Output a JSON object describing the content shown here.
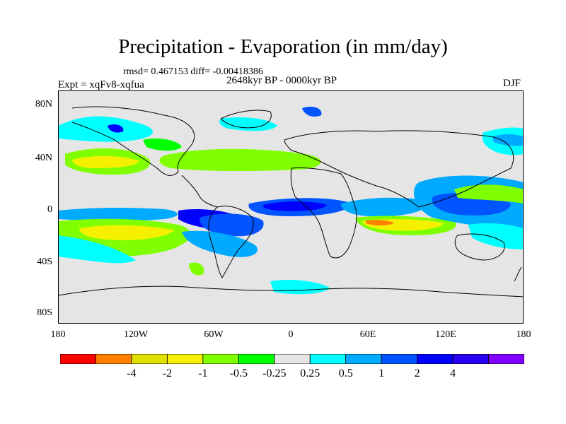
{
  "title": "Precipitation - Evaporation (in mm/day)",
  "stats": "rmsd= 0.467153 diff= -0.00418386",
  "experiment": "Expt = xqFv8-xqfua",
  "period": "2648kyr BP - 0000kyr BP",
  "season": "DJF",
  "lat_labels": [
    "80N",
    "40N",
    "0",
    "40S",
    "80S"
  ],
  "lon_labels": [
    "180",
    "120W",
    "60W",
    "0",
    "60E",
    "120E",
    "180"
  ],
  "colorbar": {
    "colors": [
      "#ff0000",
      "#ff7f00",
      "#e0e000",
      "#f4f000",
      "#80ff00",
      "#00ff00",
      "#e5e5e5",
      "#00ffff",
      "#00aaff",
      "#0055ff",
      "#0000ff",
      "#2a00f0",
      "#8000ff"
    ],
    "labels": [
      "-4",
      "-2",
      "-1",
      "-0.5",
      "-0.25",
      "0.25",
      "0.5",
      "1",
      "2",
      "4"
    ]
  }
}
